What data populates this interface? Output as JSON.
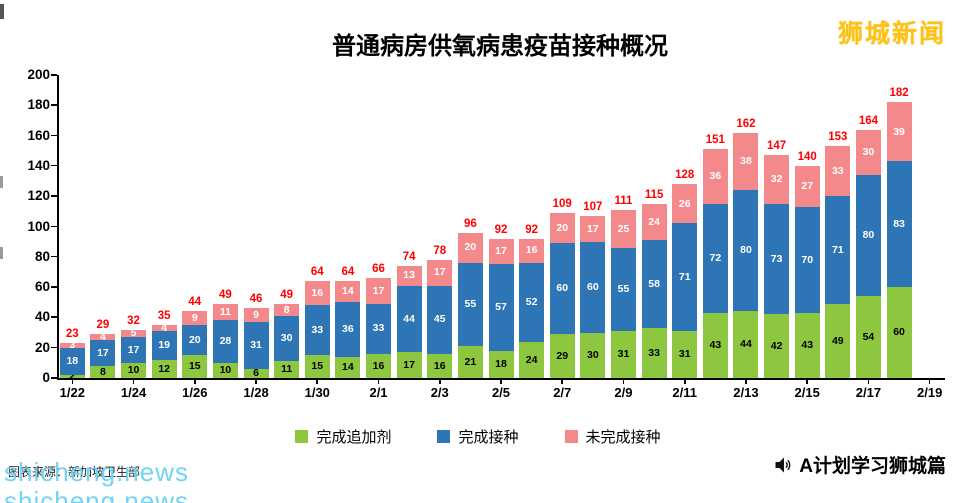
{
  "page": {
    "brand": {
      "label": "狮城新闻",
      "color": "#FFC20E"
    },
    "watermark": {
      "label": "shicheng.news",
      "color": "#72D4F2"
    },
    "source_note": "图表来源：新加坡卫生部",
    "footer": {
      "label": "A计划学习狮城篇"
    }
  },
  "chart_data": {
    "type": "bar",
    "stacked": true,
    "title": "普通病房供氧病患疫苗接种概况",
    "categories": [
      "1/22",
      "1/23",
      "1/24",
      "1/25",
      "1/26",
      "1/27",
      "1/28",
      "1/29",
      "1/30",
      "1/31",
      "2/1",
      "2/2",
      "2/3",
      "2/4",
      "2/5",
      "2/6",
      "2/7",
      "2/8",
      "2/9",
      "2/10",
      "2/11",
      "2/12",
      "2/13",
      "2/14",
      "2/15",
      "2/16",
      "2/17",
      "2/18"
    ],
    "x_tick_labels": [
      "1/22",
      "1/24",
      "1/26",
      "1/28",
      "1/30",
      "2/1",
      "2/3",
      "2/5",
      "2/7",
      "2/9",
      "2/11",
      "2/13",
      "2/15",
      "2/17",
      "2/19"
    ],
    "y_ticks": [
      0,
      20,
      40,
      60,
      80,
      100,
      120,
      140,
      160,
      180,
      200
    ],
    "ylim": [
      0,
      200
    ],
    "grid": false,
    "legend_position": "bottom",
    "series": [
      {
        "key": "booster",
        "name": "完成追加剂",
        "color": "#8DC63F",
        "label_color": "#000000",
        "values": [
          2,
          8,
          10,
          12,
          15,
          10,
          6,
          11,
          15,
          14,
          16,
          17,
          16,
          21,
          18,
          24,
          29,
          30,
          31,
          33,
          31,
          43,
          44,
          42,
          43,
          49,
          54,
          60
        ]
      },
      {
        "key": "fully-vaccinated",
        "name": "完成接种",
        "color": "#2E75B6",
        "label_color": "#FFFFFF",
        "values": [
          18,
          17,
          17,
          19,
          20,
          28,
          31,
          30,
          33,
          36,
          33,
          44,
          45,
          55,
          57,
          52,
          60,
          60,
          55,
          58,
          71,
          72,
          80,
          73,
          70,
          71,
          80,
          83
        ]
      },
      {
        "key": "not-fully-vaccinated",
        "name": "未完成接种",
        "color": "#F4898B",
        "label_color": "#FFFFFF",
        "values": [
          3,
          4,
          5,
          4,
          9,
          11,
          9,
          8,
          16,
          14,
          17,
          13,
          17,
          20,
          17,
          16,
          20,
          17,
          25,
          24,
          26,
          36,
          38,
          32,
          27,
          33,
          30,
          39
        ]
      }
    ],
    "totals": [
      23,
      29,
      32,
      35,
      44,
      49,
      46,
      49,
      64,
      64,
      66,
      74,
      78,
      96,
      92,
      92,
      109,
      107,
      111,
      115,
      128,
      151,
      162,
      147,
      140,
      153,
      164,
      182
    ],
    "total_label_color": "#FF0000"
  }
}
